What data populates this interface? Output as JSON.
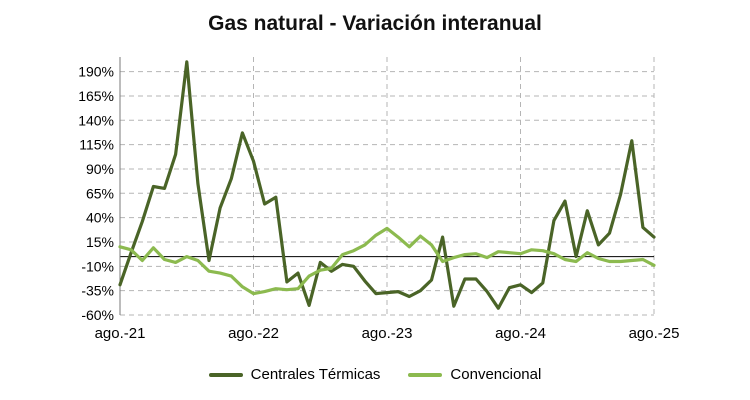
{
  "chart_data": {
    "type": "line",
    "title": "Gas natural - Variación interanual",
    "xlabel": "",
    "ylabel": "",
    "ylim": [
      -60,
      205
    ],
    "y_ticks": [
      "190%",
      "165%",
      "140%",
      "115%",
      "90%",
      "65%",
      "40%",
      "15%",
      "-10%",
      "-35%",
      "-60%"
    ],
    "y_tick_values": [
      190,
      165,
      140,
      115,
      90,
      65,
      40,
      15,
      -10,
      -35,
      -60
    ],
    "x_labels": [
      "ago.-21",
      "ago.-22",
      "ago.-23",
      "ago.-24",
      "ago.-25"
    ],
    "x_label_indices": [
      0,
      12,
      24,
      36,
      48
    ],
    "x_count": 49,
    "grid": true,
    "legend_position": "bottom",
    "series": [
      {
        "name": "Centrales Térmicas",
        "color": "#4a6427",
        "values": [
          -29,
          4,
          36,
          72,
          70,
          105,
          200,
          75,
          -4,
          50,
          80,
          127,
          98,
          54,
          61,
          -26,
          -17,
          -50,
          -6,
          -15,
          -8,
          -10,
          -25,
          -38,
          -37,
          -36,
          -41,
          -35,
          -24,
          20,
          -51,
          -23,
          -23,
          -36,
          -53,
          -32,
          -29,
          -37,
          -27,
          37,
          57,
          0,
          47,
          12,
          24,
          64,
          119,
          30,
          20
        ]
      },
      {
        "name": "Convencional",
        "color": "#8cba4f",
        "values": [
          10,
          7,
          -4,
          9,
          -3,
          -6,
          0,
          -4,
          -15,
          -17,
          -20,
          -31,
          -38,
          -36,
          -33,
          -34,
          -33,
          -20,
          -14,
          -12,
          2,
          6,
          12,
          22,
          29,
          20,
          10,
          21,
          12,
          -5,
          -1,
          2,
          3,
          -1,
          5,
          4,
          3,
          7,
          6,
          3,
          -3,
          -5,
          4,
          -2,
          -5,
          -5,
          -4,
          -3,
          -9
        ]
      }
    ]
  }
}
